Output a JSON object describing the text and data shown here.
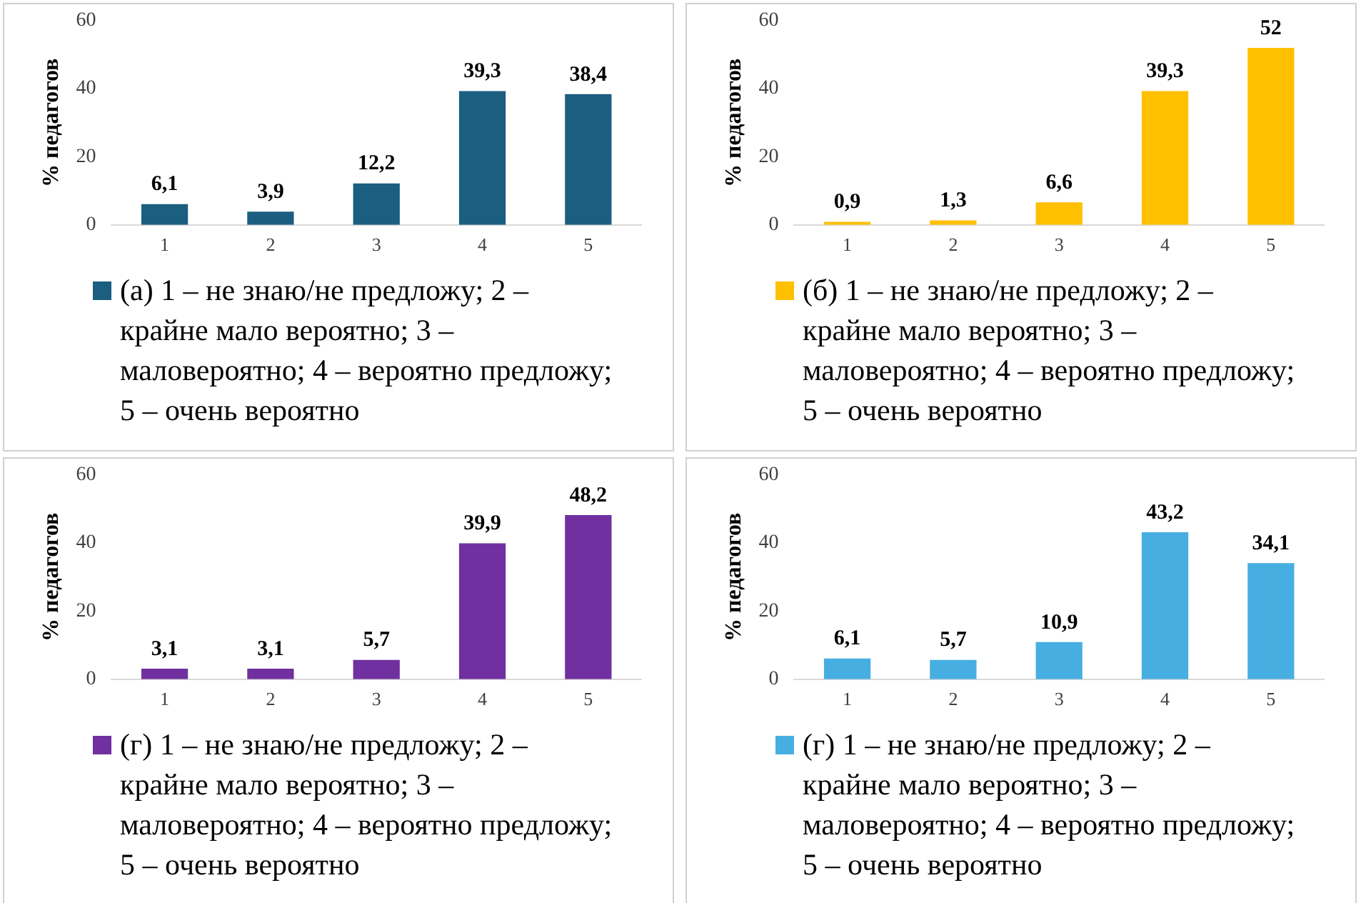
{
  "chart_data": [
    {
      "type": "bar",
      "ylabel": "% педагогов",
      "categories": [
        "1",
        "2",
        "3",
        "4",
        "5"
      ],
      "series": [
        {
          "name": "(а) 1 – не знаю/не предложу; 2 – крайне мало вероятно; 3 – маловероятно; 4 – вероятно предложу; 5 – очень вероятно",
          "color": "#1b5e80",
          "values": [
            6.1,
            3.9,
            12.2,
            39.3,
            38.4
          ],
          "value_labels": [
            "6,1",
            "3,9",
            "12,2",
            "39,3",
            "38,4"
          ]
        }
      ],
      "ylim": [
        0,
        60
      ],
      "yticks": [
        0,
        20,
        40,
        60
      ],
      "grid": false,
      "legend": "bottom"
    },
    {
      "type": "bar",
      "ylabel": "% педагогов",
      "categories": [
        "1",
        "2",
        "3",
        "4",
        "5"
      ],
      "series": [
        {
          "name": "(б) 1 – не знаю/не предложу; 2 – крайне мало вероятно; 3 – маловероятно; 4 – вероятно предложу; 5 – очень вероятно",
          "color": "#ffc000",
          "values": [
            0.9,
            1.3,
            6.6,
            39.3,
            52
          ],
          "value_labels": [
            "0,9",
            "1,3",
            "6,6",
            "39,3",
            "52"
          ]
        }
      ],
      "ylim": [
        0,
        60
      ],
      "yticks": [
        0,
        20,
        40,
        60
      ],
      "grid": false,
      "legend": "bottom"
    },
    {
      "type": "bar",
      "ylabel": "% педагогов",
      "categories": [
        "1",
        "2",
        "3",
        "4",
        "5"
      ],
      "series": [
        {
          "name": "(г) 1 – не знаю/не предложу; 2 – крайне мало вероятно; 3 – маловероятно; 4 – вероятно предложу; 5 – очень вероятно",
          "color": "#7030a0",
          "values": [
            3.1,
            3.1,
            5.7,
            39.9,
            48.2
          ],
          "value_labels": [
            "3,1",
            "3,1",
            "5,7",
            "39,9",
            "48,2"
          ]
        }
      ],
      "ylim": [
        0,
        60
      ],
      "yticks": [
        0,
        20,
        40,
        60
      ],
      "grid": false,
      "legend": "bottom"
    },
    {
      "type": "bar",
      "ylabel": "% педагогов",
      "categories": [
        "1",
        "2",
        "3",
        "4",
        "5"
      ],
      "series": [
        {
          "name": "(г) 1 – не знаю/не предложу; 2 – крайне мало вероятно; 3 – маловероятно; 4 – вероятно предложу; 5 – очень вероятно",
          "color": "#47aee2",
          "values": [
            6.1,
            5.7,
            10.9,
            43.2,
            34.1
          ],
          "value_labels": [
            "6,1",
            "5,7",
            "10,9",
            "43,2",
            "34,1"
          ]
        }
      ],
      "ylim": [
        0,
        60
      ],
      "yticks": [
        0,
        20,
        40,
        60
      ],
      "grid": false,
      "legend": "bottom"
    }
  ]
}
